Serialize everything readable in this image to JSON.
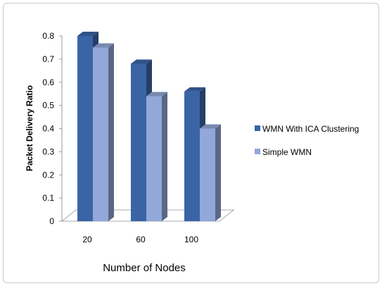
{
  "chart_data": {
    "type": "bar",
    "categories": [
      "20",
      "60",
      "100"
    ],
    "series": [
      {
        "name": "WMN  With ICA Clustering",
        "values": [
          0.8,
          0.68,
          0.56
        ],
        "color": "#3a64a6"
      },
      {
        "name": "Simple WMN",
        "values": [
          0.75,
          0.54,
          0.4
        ],
        "color": "#91a8d8"
      }
    ],
    "xlabel": "Number of Nodes",
    "ylabel": "Packet Delivery Ratio",
    "ylim": [
      0,
      0.8
    ],
    "yticks": [
      "0",
      "0.1",
      "0.2",
      "0.3",
      "0.4",
      "0.5",
      "0.6",
      "0.7",
      "0.8"
    ],
    "grid": false,
    "legend_position": "right",
    "style": "3d-clustered-column"
  }
}
